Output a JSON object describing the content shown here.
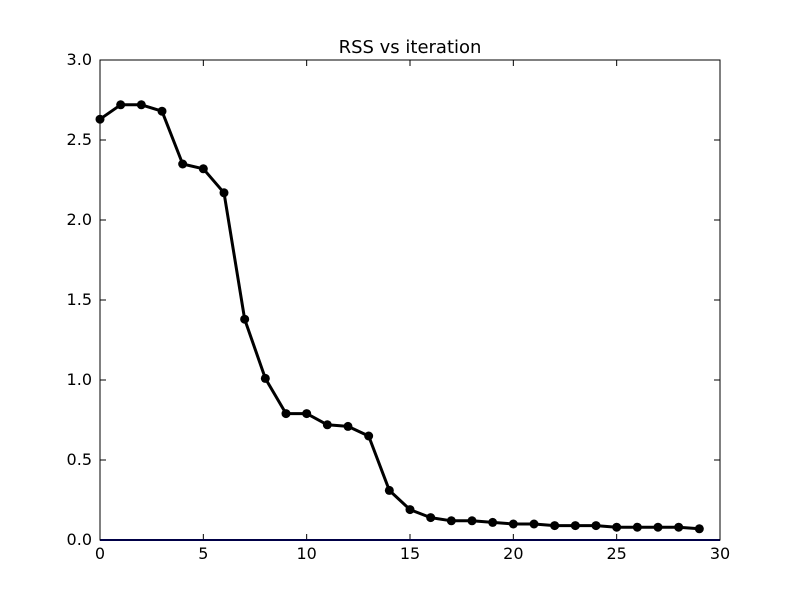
{
  "chart_data": {
    "type": "line",
    "title": "RSS vs iteration",
    "xlabel": "",
    "ylabel": "",
    "xlim": [
      0,
      30
    ],
    "ylim": [
      0.0,
      3.0
    ],
    "x_ticks": [
      0,
      5,
      10,
      15,
      20,
      25,
      30
    ],
    "y_ticks": [
      0.0,
      0.5,
      1.0,
      1.5,
      2.0,
      2.5,
      3.0
    ],
    "x_tick_labels": [
      "0",
      "5",
      "10",
      "15",
      "20",
      "25",
      "30"
    ],
    "y_tick_labels": [
      "0.0",
      "0.5",
      "1.0",
      "1.5",
      "2.0",
      "2.5",
      "3.0"
    ],
    "grid": false,
    "legend": "none",
    "series": [
      {
        "color": "#000000",
        "marker": "circle",
        "x": [
          0,
          1,
          2,
          3,
          4,
          5,
          6,
          7,
          8,
          9,
          10,
          11,
          12,
          13,
          14,
          15,
          16,
          17,
          18,
          19,
          20,
          21,
          22,
          23,
          24,
          25,
          26,
          27,
          28,
          29
        ],
        "y": [
          2.63,
          2.72,
          2.72,
          2.68,
          2.35,
          2.32,
          2.17,
          1.38,
          1.01,
          0.79,
          0.79,
          0.72,
          0.71,
          0.65,
          0.31,
          0.19,
          0.14,
          0.12,
          0.12,
          0.11,
          0.1,
          0.1,
          0.09,
          0.09,
          0.09,
          0.08,
          0.08,
          0.08,
          0.08,
          0.07
        ]
      }
    ],
    "reference_lines": [
      {
        "orientation": "horizontal",
        "y": 0.0,
        "color": "#00008b"
      }
    ]
  }
}
